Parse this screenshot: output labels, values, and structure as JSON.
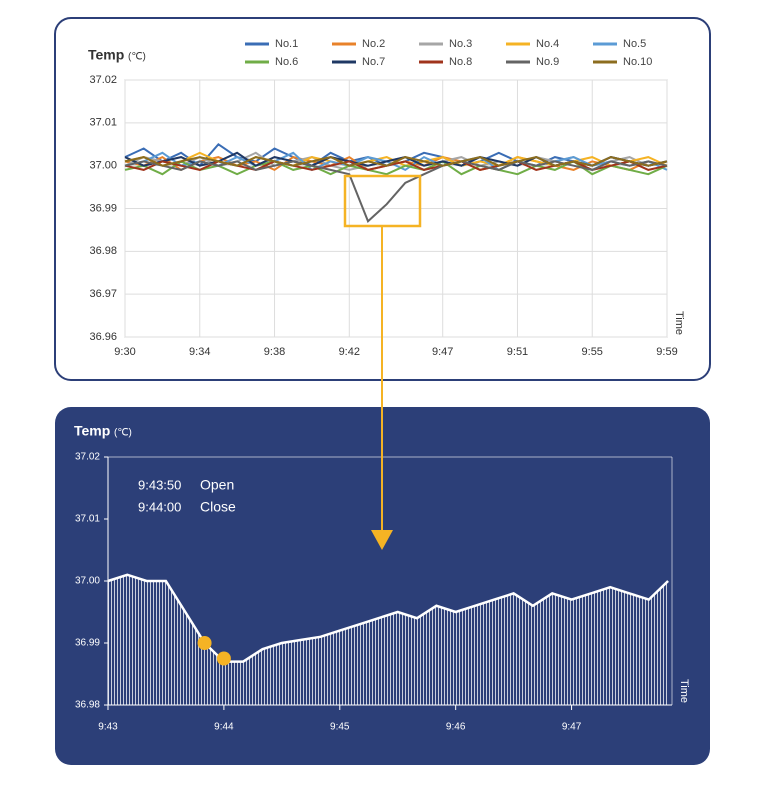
{
  "chart_data": [
    {
      "type": "line",
      "title": "Temp",
      "unit": "(℃)",
      "x_label": "Time",
      "x": [
        "9:30",
        "9:31",
        "9:32",
        "9:33",
        "9:34",
        "9:35",
        "9:36",
        "9:37",
        "9:38",
        "9:39",
        "9:40",
        "9:41",
        "9:42",
        "9:43",
        "9:44",
        "9:45",
        "9:46",
        "9:47",
        "9:48",
        "9:49",
        "9:50",
        "9:51",
        "9:52",
        "9:53",
        "9:54",
        "9:55",
        "9:56",
        "9:57",
        "9:58",
        "9:59"
      ],
      "xlim": [
        "9:30",
        "9:59"
      ],
      "xticks": [
        "9:30",
        "9:34",
        "9:38",
        "9:42",
        "9:47",
        "9:51",
        "9:55",
        "9:59"
      ],
      "ylim": [
        36.96,
        37.02
      ],
      "yticks": [
        36.96,
        36.97,
        36.98,
        36.99,
        {
          "value": 37,
          "label": "37.00"
        },
        37.01,
        37.02
      ],
      "grid": true,
      "series": [
        {
          "name": "No.1",
          "color": "#3a6db5",
          "values": [
            37.002,
            37.004,
            37.001,
            37.003,
            37.0,
            37.005,
            37.002,
            37.001,
            37.004,
            37.002,
            37.0,
            37.003,
            37.001,
            37.002,
            37.0,
            37.001,
            37.003,
            37.002,
            37.0,
            37.001,
            37.003,
            37.001,
            37.0,
            37.002,
            37.001,
            37.0,
            37.002,
            37.001,
            37.0,
            37.001
          ]
        },
        {
          "name": "No.2",
          "color": "#e8822a",
          "values": [
            37.001,
            37.0,
            37.002,
            36.999,
            37.001,
            37.002,
            37.0,
            37.001,
            36.999,
            37.002,
            37.001,
            37.0,
            37.002,
            36.999,
            37.0,
            37.001,
            37.0,
            37.002,
            37.001,
            36.999,
            37.0,
            37.002,
            37.001,
            37.0,
            36.999,
            37.001,
            37.0,
            36.999,
            37.001,
            37.0
          ]
        },
        {
          "name": "No.3",
          "color": "#a6a6a6",
          "values": [
            37.0,
            37.002,
            37.001,
            37.0,
            37.002,
            37.0,
            37.001,
            37.003,
            37.0,
            37.001,
            37.002,
            37.0,
            36.999,
            37.0,
            37.001,
            37.002,
            37.0,
            37.001,
            37.002,
            37.0,
            37.001,
            37.0,
            37.002,
            37.001,
            37.002,
            37.0,
            37.001,
            37.002,
            37.0,
            37.001
          ]
        },
        {
          "name": "No.4",
          "color": "#f5b324",
          "values": [
            37.001,
            37.002,
            37.0,
            37.001,
            37.003,
            37.001,
            37.0,
            37.002,
            37.001,
            37.0,
            37.002,
            37.001,
            37.0,
            37.001,
            37.002,
            37.0,
            37.001,
            37.002,
            37.0,
            37.001,
            37.0,
            37.002,
            37.001,
            37.0,
            37.001,
            37.002,
            37.0,
            37.001,
            37.002,
            37.0
          ]
        },
        {
          "name": "No.5",
          "color": "#5b9bd5",
          "values": [
            37.0,
            37.001,
            37.003,
            37.0,
            37.001,
            37.0,
            37.002,
            37.0,
            37.001,
            37.003,
            36.999,
            37.001,
            37.0,
            37.002,
            37.001,
            36.999,
            37.002,
            37.0,
            37.001,
            37.002,
            36.999,
            37.001,
            37.0,
            37.001,
            37.002,
            37.0,
            37.001,
            37.0,
            37.001,
            36.999
          ]
        },
        {
          "name": "No.6",
          "color": "#70ad47",
          "values": [
            36.999,
            37.0,
            36.998,
            37.001,
            36.999,
            37.0,
            36.998,
            37.0,
            37.001,
            36.999,
            37.0,
            36.998,
            37.0,
            36.999,
            36.998,
            37.0,
            36.999,
            37.001,
            36.998,
            37.0,
            36.999,
            36.998,
            37.0,
            36.999,
            37.001,
            36.998,
            37.0,
            36.999,
            36.998,
            37.0
          ]
        },
        {
          "name": "No.7",
          "color": "#1f3864",
          "values": [
            37.002,
            37.0,
            37.001,
            37.002,
            37.0,
            37.001,
            37.003,
            37.0,
            37.002,
            37.001,
            37.0,
            37.002,
            37.001,
            37.0,
            37.001,
            37.002,
            37.0,
            37.001,
            37.0,
            37.002,
            37.001,
            37.0,
            37.002,
            37.0,
            37.001,
            37.0,
            37.002,
            37.001,
            37.0,
            37.001
          ]
        },
        {
          "name": "No.8",
          "color": "#a0341c",
          "values": [
            37.0,
            36.999,
            37.001,
            37.0,
            36.999,
            37.001,
            37.0,
            36.999,
            37.001,
            37.0,
            36.999,
            37.0,
            37.001,
            36.999,
            37.0,
            37.001,
            36.999,
            37.0,
            37.001,
            36.999,
            37.0,
            37.001,
            36.999,
            37.0,
            37.001,
            36.999,
            37.0,
            37.001,
            36.999,
            37.0
          ]
        },
        {
          "name": "No.9",
          "color": "#646464",
          "values": [
            37.0,
            37.001,
            37.0,
            36.999,
            37.001,
            37.0,
            37.001,
            36.999,
            37.0,
            37.001,
            37.0,
            36.999,
            36.998,
            36.987,
            36.991,
            36.996,
            36.998,
            37.0,
            37.001,
            37.0,
            36.999,
            37.001,
            37.0,
            37.001,
            37.0,
            36.999,
            37.001,
            37.0,
            37.001,
            37.0
          ]
        },
        {
          "name": "No.10",
          "color": "#8c6d1f",
          "values": [
            37.001,
            37.002,
            37.0,
            37.001,
            37.002,
            37.001,
            37.0,
            37.002,
            37.001,
            37.0,
            37.001,
            37.002,
            37.0,
            37.001,
            37.0,
            37.002,
            37.001,
            37.0,
            37.001,
            37.002,
            37.0,
            37.001,
            37.002,
            37.0,
            37.001,
            37.0,
            37.002,
            37.001,
            37.0,
            37.001
          ]
        }
      ]
    },
    {
      "type": "line",
      "title": "Temp",
      "unit": "(℃)",
      "x_label": "Time",
      "color": "#ffffff",
      "x": [
        "9:43:00",
        "9:43:10",
        "9:43:20",
        "9:43:30",
        "9:43:40",
        "9:43:50",
        "9:44:00",
        "9:44:10",
        "9:44:20",
        "9:44:30",
        "9:44:40",
        "9:44:50",
        "9:45:00",
        "9:45:10",
        "9:45:20",
        "9:45:30",
        "9:45:40",
        "9:45:50",
        "9:46:00",
        "9:46:10",
        "9:46:20",
        "9:46:30",
        "9:46:40",
        "9:46:50",
        "9:47:00",
        "9:47:10",
        "9:47:20",
        "9:47:30",
        "9:47:40",
        "9:47:50"
      ],
      "values": [
        37.0,
        37.001,
        37.0,
        37.0,
        36.995,
        36.99,
        36.987,
        36.987,
        36.989,
        36.99,
        36.9905,
        36.991,
        36.992,
        36.993,
        36.994,
        36.995,
        36.994,
        36.996,
        36.995,
        36.996,
        36.997,
        36.998,
        36.996,
        36.998,
        36.997,
        36.998,
        36.999,
        36.998,
        36.997,
        37.0
      ],
      "xlim": [
        "9:43:00",
        "9:47:52"
      ],
      "xticks": [
        "9:43",
        "9:44",
        "9:45",
        "9:46",
        "9:47"
      ],
      "ylim": [
        36.98,
        37.02
      ],
      "yticks": [
        36.98,
        36.99,
        {
          "value": 37,
          "label": "37.00"
        },
        37.01,
        37.02
      ],
      "markers": [
        {
          "x": "9:43:50",
          "y": 36.99,
          "color": "#f5b324"
        },
        {
          "x": "9:44:00",
          "y": 36.9875,
          "color": "#f5b324"
        }
      ],
      "annotations": [
        {
          "time": "9:43:50",
          "text": "Open"
        },
        {
          "time": "9:44:00",
          "text": "Close"
        }
      ]
    }
  ]
}
